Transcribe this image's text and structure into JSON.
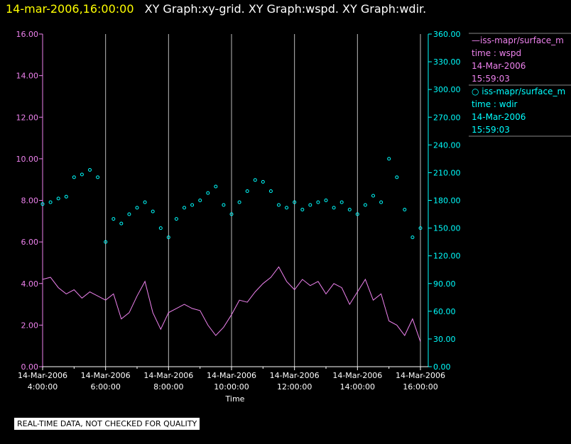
{
  "title": {
    "date": "14-mar-2006,16:00:00",
    "text": "XY Graph:xy-grid.  XY Graph:wspd.  XY Graph:wdir."
  },
  "note": "REAL-TIME DATA, NOT CHECKED FOR QUALITY",
  "colors": {
    "wspd": "#ee82ee",
    "wdir": "#00ffff",
    "grid": "#bbbbbb",
    "background": "#000000"
  },
  "legend": [
    {
      "line1": "—iss-mapr/surface_m",
      "line2": "time : wspd",
      "line3": "14-Mar-2006",
      "line4": "15:59:03"
    },
    {
      "line1": "○ iss-mapr/surface_m",
      "line2": "time : wdir",
      "line3": "14-Mar-2006",
      "line4": "15:59:03"
    }
  ],
  "chart_data": {
    "type": "line",
    "xlabel": "Time",
    "x_ticks": [
      {
        "d": "14-Mar-2006",
        "t": "4:00:00"
      },
      {
        "d": "14-Mar-2006",
        "t": "6:00:00"
      },
      {
        "d": "14-Mar-2006",
        "t": "8:00:00"
      },
      {
        "d": "14-Mar-2006",
        "t": "10:00:00"
      },
      {
        "d": "14-Mar-2006",
        "t": "12:00:00"
      },
      {
        "d": "14-Mar-2006",
        "t": "14:00:00"
      },
      {
        "d": "14-Mar-2006",
        "t": "16:00:00"
      }
    ],
    "xlim_hours": [
      4,
      16
    ],
    "left_axis": {
      "ylim": [
        0,
        16
      ],
      "ticks": [
        "0.00",
        "2.00",
        "4.00",
        "6.00",
        "8.00",
        "10.00",
        "12.00",
        "14.00",
        "16.00"
      ]
    },
    "right_axis": {
      "ylim": [
        0,
        360
      ],
      "ticks": [
        "0.00",
        "30.00",
        "60.00",
        "90.00",
        "120.00",
        "150.00",
        "180.00",
        "210.00",
        "240.00",
        "270.00",
        "300.00",
        "330.00",
        "360.00"
      ]
    },
    "grid": true,
    "series": [
      {
        "name": "iss-mapr/surface_m time : wspd",
        "axis": "left",
        "style": "line",
        "x": [
          4.0,
          4.25,
          4.5,
          4.75,
          5.0,
          5.25,
          5.5,
          5.75,
          6.0,
          6.25,
          6.5,
          6.75,
          7.0,
          7.25,
          7.5,
          7.75,
          8.0,
          8.25,
          8.5,
          8.75,
          9.0,
          9.25,
          9.5,
          9.75,
          10.0,
          10.25,
          10.5,
          10.75,
          11.0,
          11.25,
          11.5,
          11.75,
          12.0,
          12.25,
          12.5,
          12.75,
          13.0,
          13.25,
          13.5,
          13.75,
          14.0,
          14.25,
          14.5,
          14.75,
          15.0,
          15.25,
          15.5,
          15.75,
          16.0
        ],
        "y": [
          4.2,
          4.3,
          3.8,
          3.5,
          3.7,
          3.3,
          3.6,
          3.4,
          3.2,
          3.5,
          2.3,
          2.6,
          3.4,
          4.1,
          2.6,
          1.8,
          2.6,
          2.8,
          3.0,
          2.8,
          2.7,
          2.0,
          1.5,
          1.9,
          2.5,
          3.2,
          3.1,
          3.6,
          4.0,
          4.3,
          4.8,
          4.1,
          3.7,
          4.2,
          3.9,
          4.1,
          3.5,
          4.0,
          3.8,
          3.0,
          3.6,
          4.2,
          3.2,
          3.5,
          2.2,
          2.0,
          1.5,
          2.3,
          1.2
        ]
      },
      {
        "name": "iss-mapr/surface_m time : wdir",
        "axis": "right",
        "style": "scatter",
        "x": [
          4.0,
          4.25,
          4.5,
          4.75,
          5.0,
          5.25,
          5.5,
          5.75,
          6.0,
          6.25,
          6.5,
          6.75,
          7.0,
          7.25,
          7.5,
          7.75,
          8.0,
          8.25,
          8.5,
          8.75,
          9.0,
          9.25,
          9.5,
          9.75,
          10.0,
          10.25,
          10.5,
          10.75,
          11.0,
          11.25,
          11.5,
          11.75,
          12.0,
          12.25,
          12.5,
          12.75,
          13.0,
          13.25,
          13.5,
          13.75,
          14.0,
          14.25,
          14.5,
          14.75,
          15.0,
          15.25,
          15.5,
          15.75,
          16.0
        ],
        "y": [
          176,
          178,
          182,
          184,
          205,
          208,
          213,
          205,
          135,
          160,
          155,
          165,
          172,
          178,
          168,
          150,
          140,
          160,
          172,
          175,
          180,
          188,
          195,
          175,
          165,
          178,
          190,
          202,
          200,
          190,
          175,
          172,
          178,
          170,
          175,
          178,
          180,
          172,
          178,
          170,
          165,
          175,
          185,
          178,
          225,
          205,
          170,
          140,
          150
        ]
      }
    ]
  }
}
